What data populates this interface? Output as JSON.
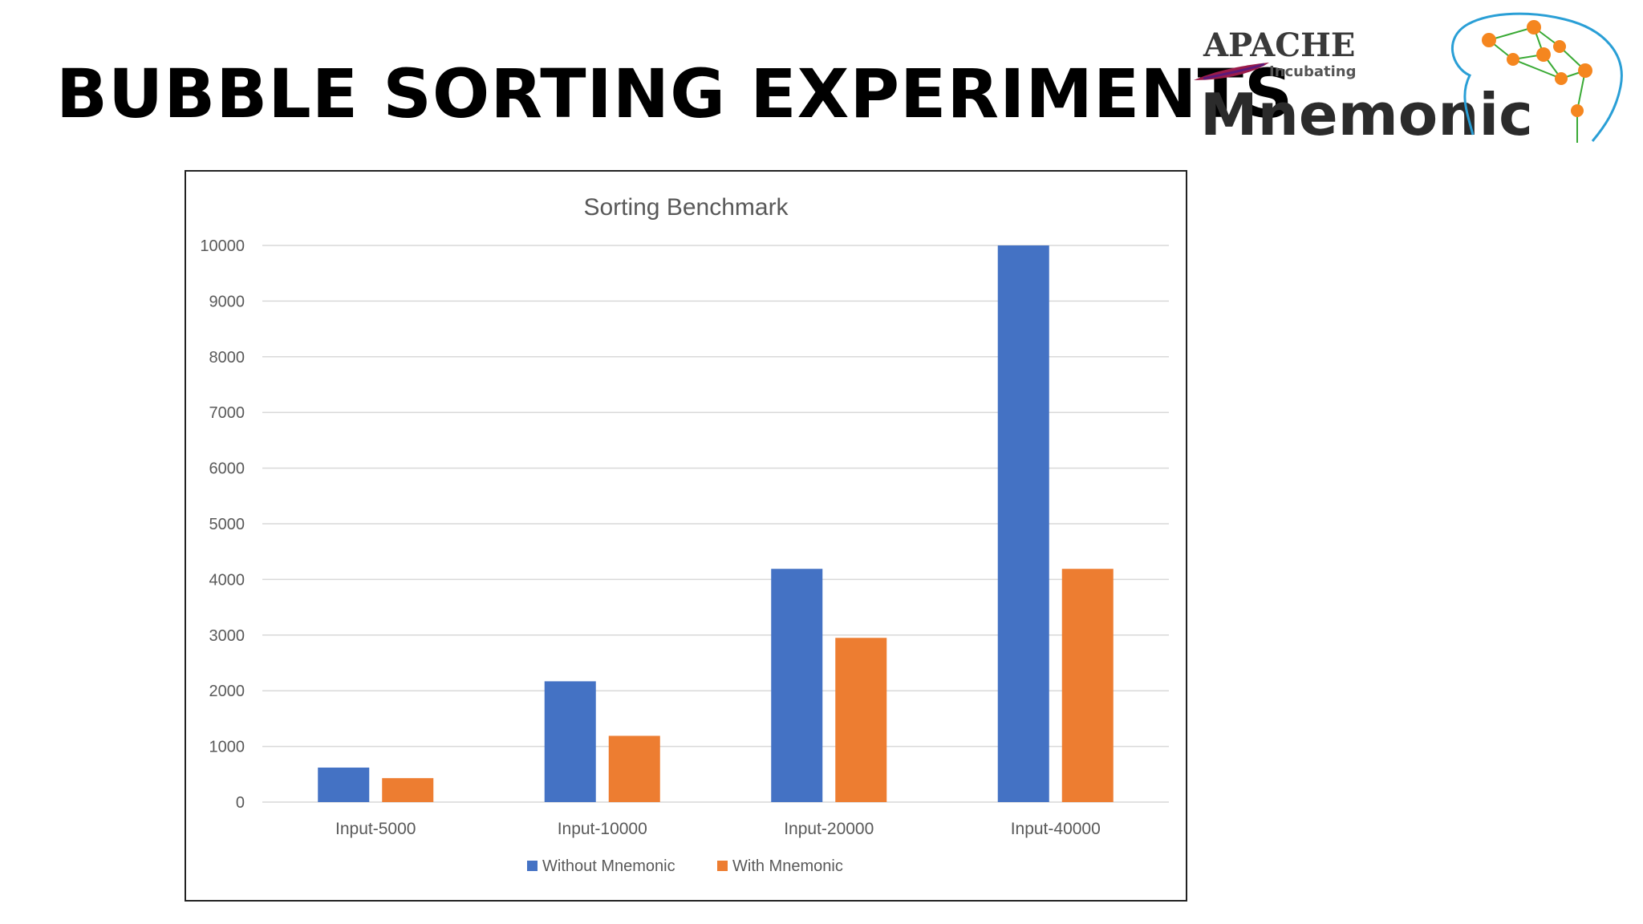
{
  "slide": {
    "title": "BUBBLE SORTING EXPERIMENTS"
  },
  "logo": {
    "apache": "APACHE",
    "incubating": "Incubating",
    "name": "Mnemonic"
  },
  "colors": {
    "series_without": "#4472C4",
    "series_with": "#ED7D31",
    "grid": "#D9D9D9",
    "text": "#595959",
    "logo_dark": "#3a3a3a",
    "logo_orange": "#F5861F",
    "logo_green": "#3AAA35",
    "logo_blue": "#2A9FD6"
  },
  "chart_data": {
    "type": "bar",
    "title": "Sorting Benchmark",
    "categories": [
      "Input-5000",
      "Input-10000",
      "Input-20000",
      "Input-40000"
    ],
    "series": [
      {
        "name": "Without Mnemonic",
        "values": [
          620,
          2170,
          4190,
          10000
        ]
      },
      {
        "name": "With Mnemonic",
        "values": [
          430,
          1190,
          2950,
          4190
        ]
      }
    ],
    "ylim": [
      0,
      10000
    ],
    "yticks": [
      0,
      1000,
      2000,
      3000,
      4000,
      5000,
      6000,
      7000,
      8000,
      9000,
      10000
    ],
    "xlabel": "",
    "ylabel": "",
    "grid": true,
    "legend": "bottom-center"
  }
}
